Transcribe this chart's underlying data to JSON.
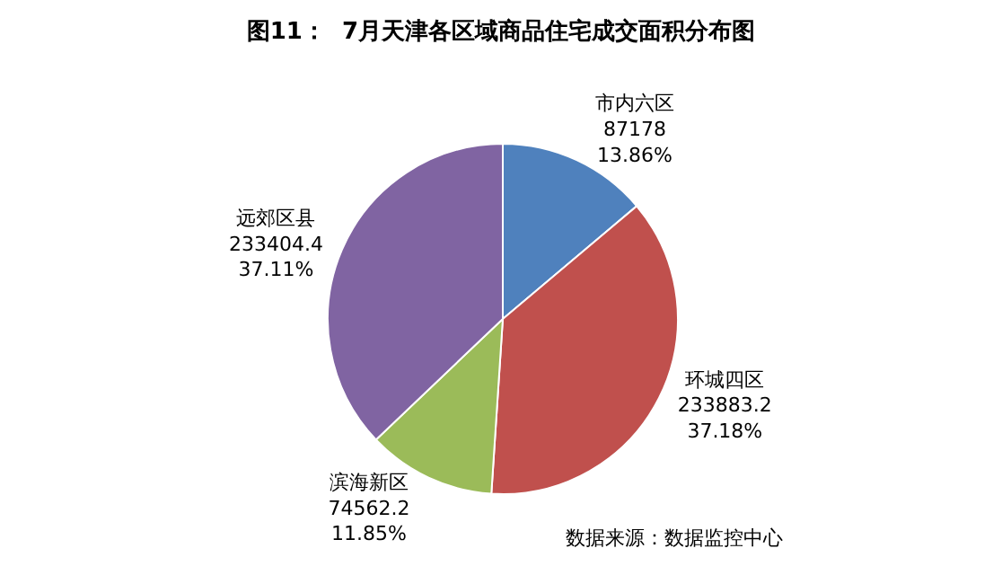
{
  "chart_data": {
    "type": "pie",
    "title": "图11：  7月天津各区域商品住宅成交面积分布图",
    "categories": [
      "市内六区",
      "环城四区",
      "滨海新区",
      "远郊区县"
    ],
    "values": [
      87178,
      233883.2,
      74562.2,
      233404.4
    ],
    "value_labels": [
      "87178\n13.86%",
      "233883.2\n37.18%",
      "74562.2\n11.85%",
      "233404.4\n37.11%"
    ],
    "colors": [
      "#4f81bd",
      "#c0504d",
      "#9bbb59",
      "#8064a2"
    ],
    "legend": false,
    "annotations": [
      "数据来源：数据监控中心"
    ]
  }
}
